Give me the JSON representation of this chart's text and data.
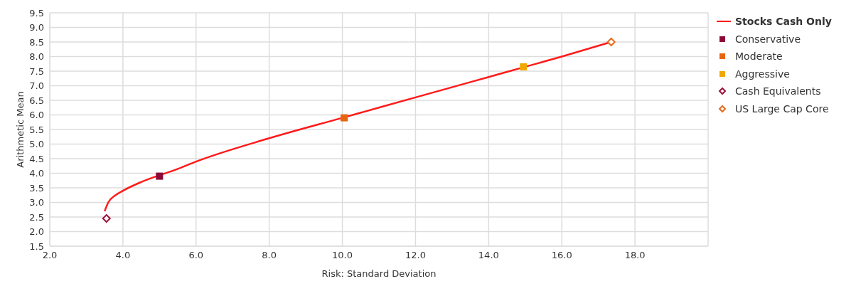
{
  "chart_data": {
    "type": "scatter",
    "xlabel": "Risk: Standard Deviation",
    "ylabel": "Arithmetic Mean",
    "xlim": [
      2,
      20
    ],
    "xticks": [
      {
        "value": 2,
        "label": "2.0"
      },
      {
        "value": 4,
        "label": "4.0"
      },
      {
        "value": 6,
        "label": "6.0"
      },
      {
        "value": 8,
        "label": "8.0"
      },
      {
        "value": 10,
        "label": "10.0"
      },
      {
        "value": 12,
        "label": "12.0"
      },
      {
        "value": 14,
        "label": "14.0"
      },
      {
        "value": 16,
        "label": "16.0"
      },
      {
        "value": 18,
        "label": "18.0"
      }
    ],
    "ylim": [
      1.5,
      9.5
    ],
    "yticks": [
      {
        "value": 1.5,
        "label": "1.5"
      },
      {
        "value": 2,
        "label": "2.0"
      },
      {
        "value": 2.5,
        "label": "2.5"
      },
      {
        "value": 3,
        "label": "3.0"
      },
      {
        "value": 3.5,
        "label": "3.5"
      },
      {
        "value": 4,
        "label": "4.0"
      },
      {
        "value": 4.5,
        "label": "4.5"
      },
      {
        "value": 5,
        "label": "5.0"
      },
      {
        "value": 5.5,
        "label": "5.5"
      },
      {
        "value": 6,
        "label": "6.0"
      },
      {
        "value": 6.5,
        "label": "6.5"
      },
      {
        "value": 7,
        "label": "7.0"
      },
      {
        "value": 7.5,
        "label": "7.5"
      },
      {
        "value": 8,
        "label": "8.0"
      },
      {
        "value": 8.5,
        "label": "8.5"
      },
      {
        "value": 9,
        "label": "9.0"
      },
      {
        "value": 9.5,
        "label": "9.5"
      }
    ],
    "grid": true,
    "legend": "right",
    "series": [
      {
        "name": "Stocks Cash Only",
        "type": "line",
        "color": "#ff1a1a",
        "marker": "none",
        "x": [
          3.5,
          3.6,
          3.8,
          4.0,
          4.5,
          5.5,
          6.0,
          8.0,
          10.0,
          12.0,
          14.0,
          15.0,
          16.0,
          17.35
        ],
        "values": [
          2.7,
          3.0,
          3.25,
          3.4,
          3.7,
          4.15,
          4.4,
          5.2,
          5.9,
          6.6,
          7.3,
          7.65,
          8.0,
          8.5
        ]
      },
      {
        "name": "Conservative",
        "color": "#8b0a3a",
        "marker": "square",
        "x": [
          5.0
        ],
        "values": [
          3.9
        ]
      },
      {
        "name": "Moderate",
        "color": "#e8650f",
        "marker": "square",
        "x": [
          10.05
        ],
        "values": [
          5.9
        ]
      },
      {
        "name": "Aggressive",
        "color": "#f0a800",
        "marker": "square",
        "x": [
          14.95
        ],
        "values": [
          7.65
        ]
      },
      {
        "name": "Cash Equivalents",
        "color": "#a0103a",
        "marker": "diamond",
        "x": [
          3.55
        ],
        "values": [
          2.45
        ]
      },
      {
        "name": "US Large Cap Core",
        "color": "#e86a1a",
        "marker": "diamond",
        "x": [
          17.35
        ],
        "values": [
          8.5
        ]
      }
    ]
  }
}
